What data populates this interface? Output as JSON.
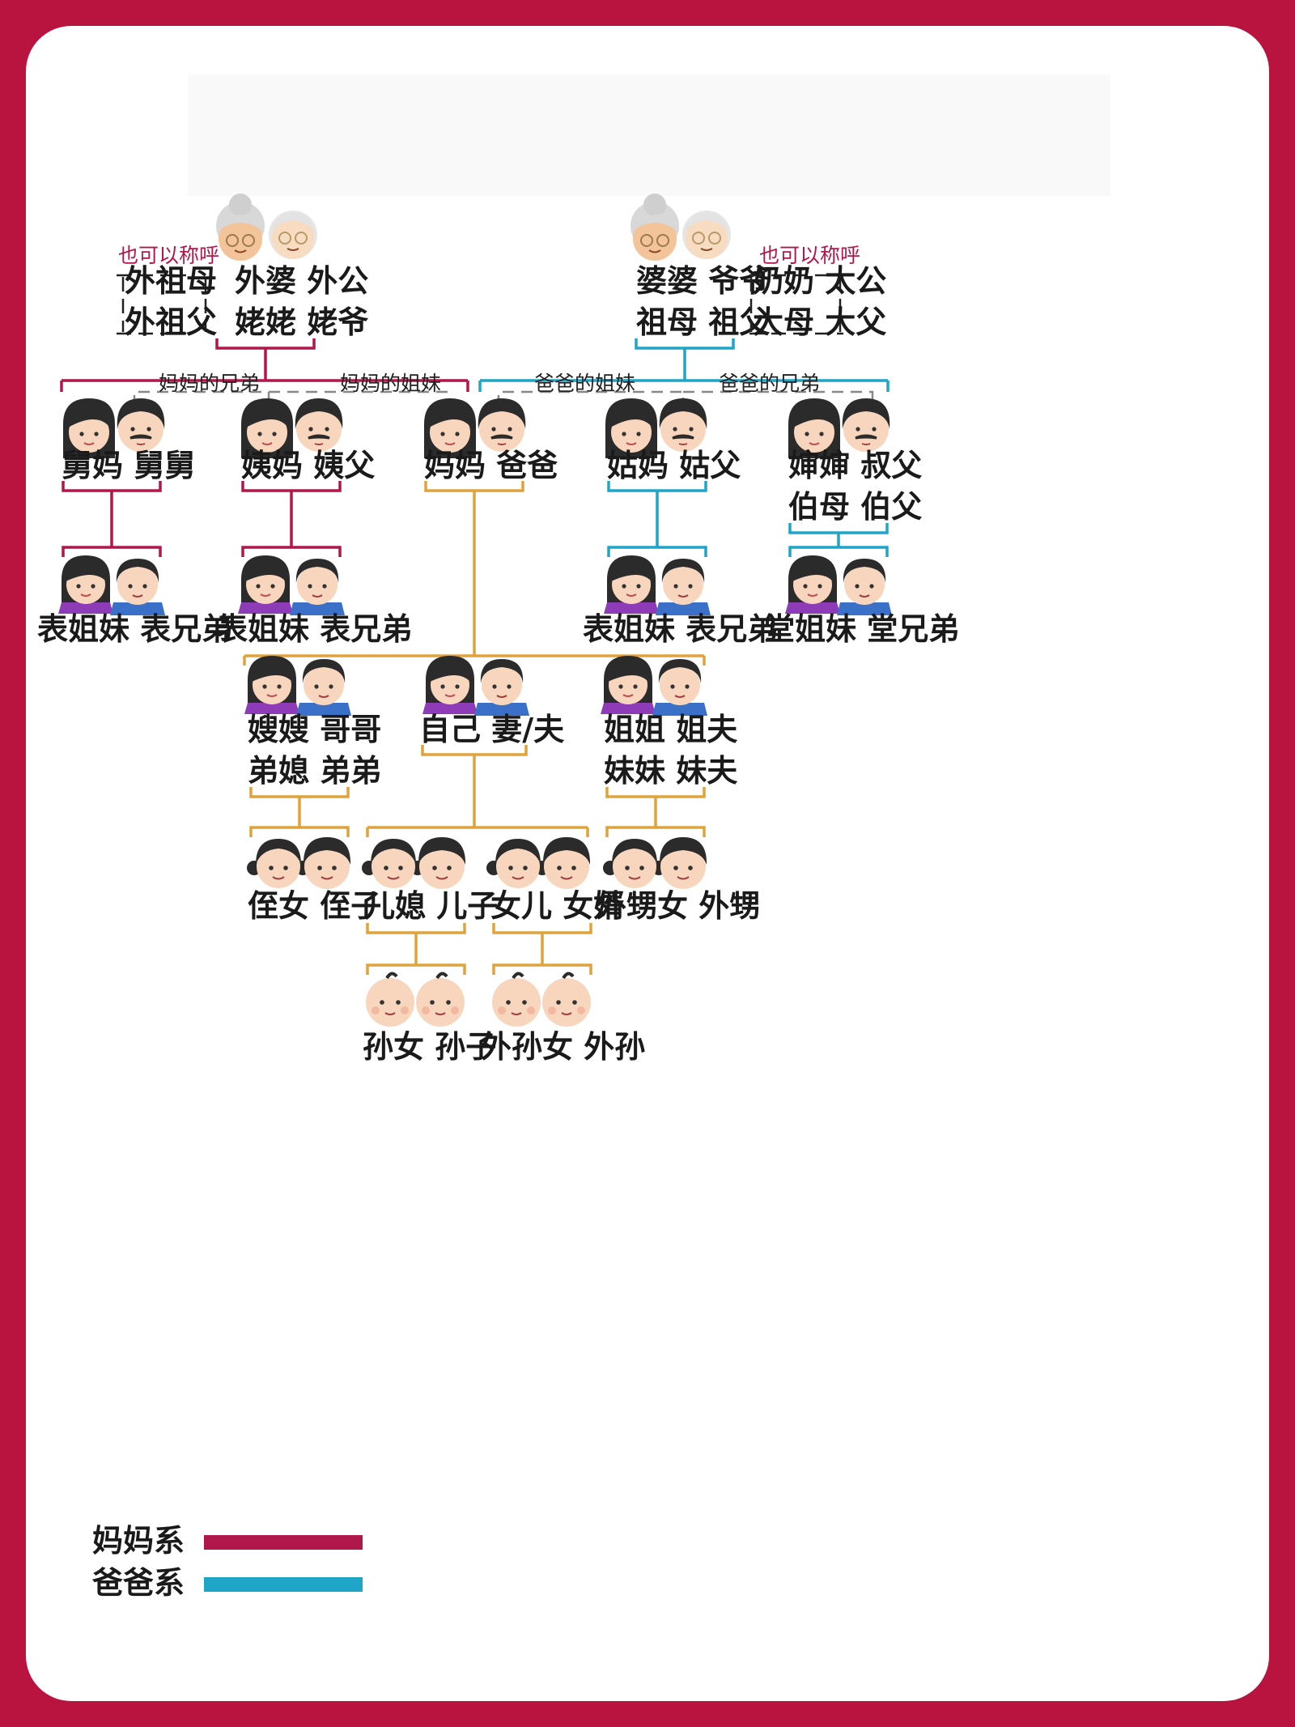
{
  "colors": {
    "mom_side": "#b0174a",
    "dad_side": "#1fa5c7",
    "own_line": "#e0a23a",
    "frame": "#b8143f"
  },
  "title_watermark": "",
  "grandparents": {
    "maternal": {
      "row1": "外婆 外公",
      "row2": "姥姥 姥爷",
      "alt_note": "也可以称呼",
      "alt_row1": "外祖母",
      "alt_row2": "外祖父"
    },
    "paternal": {
      "row1": "婆婆  爷爷",
      "row2": "祖母  祖父",
      "alt_note": "也可以称呼",
      "alt_row1": "奶奶 太公",
      "alt_row2": "大母 大父"
    }
  },
  "relation_notes": {
    "mom_brothers": "妈妈的兄弟",
    "mom_sisters": "妈妈的姐妹",
    "dad_sisters": "爸爸的姐妹",
    "dad_brothers": "爸爸的兄弟"
  },
  "parents_gen": {
    "maternal_uncle": "舅妈 舅舅",
    "maternal_aunt": "姨妈 姨父",
    "parents": "妈妈 爸爸",
    "paternal_aunt": "姑妈 姑父",
    "paternal_uncle_row1": "婶婶 叔父",
    "paternal_uncle_row2": "伯母 伯父"
  },
  "cousins": {
    "c1": "表姐妹 表兄弟",
    "c2": "表姐妹 表兄弟",
    "c3": "表姐妹 表兄弟",
    "c4": "堂姐妹 堂兄弟"
  },
  "self_gen": {
    "elder_brother_row1": "嫂嫂 哥哥",
    "elder_brother_row2": "弟媳 弟弟",
    "self": "自己 妻/夫",
    "sister_row1": "姐姐 姐夫",
    "sister_row2": "妹妹 妹夫"
  },
  "children_gen": {
    "nephew": "侄女 侄子",
    "son": "儿媳 儿子",
    "daughter": "女儿 女婿",
    "sister_child": "外甥女 外甥"
  },
  "grandchildren": {
    "son_kids": "孙女 孙子",
    "daughter_kids": "外孙女 外孙"
  },
  "legend": [
    {
      "label": "妈妈系",
      "color": "#b0174a"
    },
    {
      "label": "爸爸系",
      "color": "#1fa5c7"
    }
  ],
  "icons": [
    "grandma-icon",
    "grandpa-icon",
    "woman-icon",
    "man-icon",
    "girl-icon",
    "boy-icon",
    "baby-icon"
  ]
}
